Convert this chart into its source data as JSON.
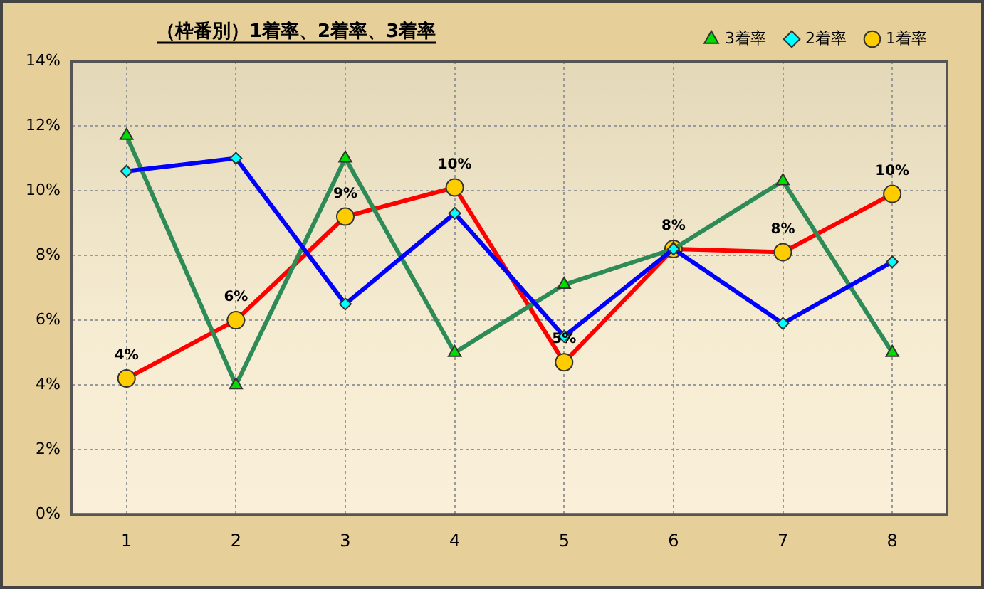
{
  "chart_data": {
    "type": "line",
    "title": "（枠番別）1着率、2着率、3着率",
    "categories": [
      "1",
      "2",
      "3",
      "4",
      "5",
      "6",
      "7",
      "8"
    ],
    "series": [
      {
        "name": "3着率",
        "color": "#2e8b57",
        "marker": "triangle",
        "values": [
          11.7,
          4.0,
          11.0,
          5.0,
          7.1,
          8.2,
          10.3,
          5.0
        ]
      },
      {
        "name": "2着率",
        "color": "#0000ff",
        "marker": "diamond",
        "values": [
          10.6,
          11.0,
          6.5,
          9.3,
          5.5,
          8.2,
          5.9,
          7.8
        ]
      },
      {
        "name": "1着率",
        "color": "#ff0000",
        "marker": "circle",
        "values": [
          4.2,
          6.0,
          9.2,
          10.1,
          4.7,
          8.2,
          8.1,
          9.9
        ],
        "value_labels": [
          "4%",
          "6%",
          "9%",
          "10%",
          "5%",
          "8%",
          "8%",
          "10%"
        ]
      }
    ],
    "ylim": [
      0,
      14
    ],
    "yticks": [
      {
        "value": 0,
        "label": "0%"
      },
      {
        "value": 2,
        "label": "2%"
      },
      {
        "value": 4,
        "label": "4%"
      },
      {
        "value": 6,
        "label": "6%"
      },
      {
        "value": 8,
        "label": "8%"
      },
      {
        "value": 10,
        "label": "10%"
      },
      {
        "value": 12,
        "label": "12%"
      },
      {
        "value": 14,
        "label": "14%"
      }
    ],
    "grid": true,
    "legend": "top right"
  }
}
